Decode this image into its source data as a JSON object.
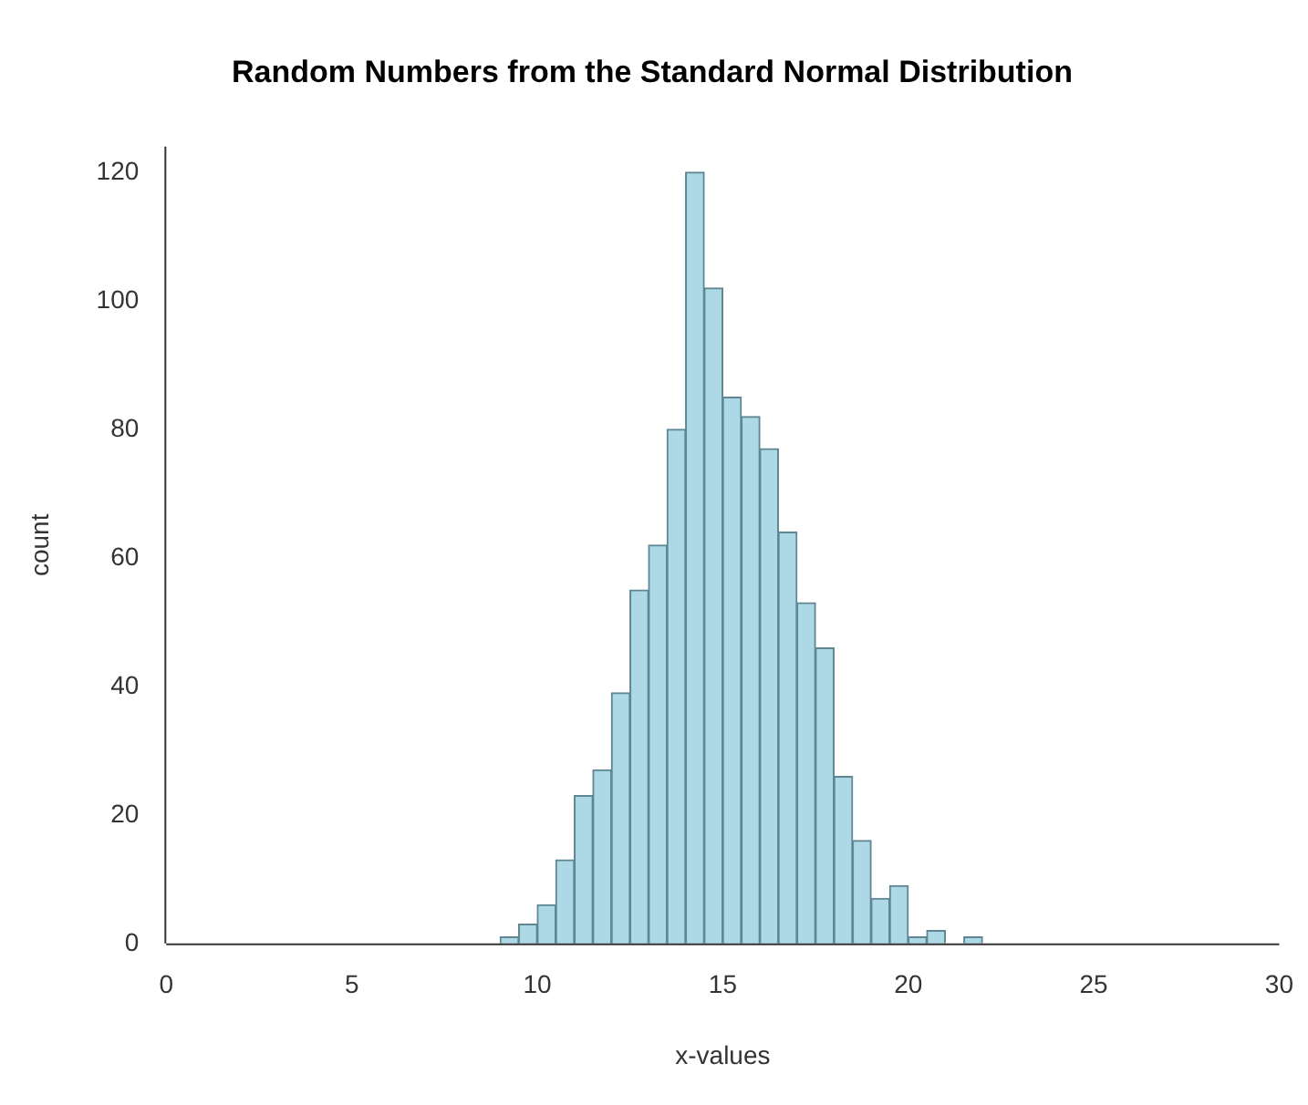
{
  "chart_data": {
    "type": "histogram",
    "title": "Random Numbers from the Standard Normal Distribution",
    "xlabel": "x-values",
    "ylabel": "count",
    "bins": [
      9,
      9.5,
      10,
      10.5,
      11,
      11.5,
      12,
      12.5,
      13,
      13.5,
      14,
      14.5,
      15,
      15.5,
      16,
      16.5,
      17,
      17.5,
      18,
      18.5,
      19,
      19.5,
      20,
      20.5,
      21,
      21.5,
      22
    ],
    "values": [
      1,
      3,
      6,
      13,
      23,
      27,
      39,
      55,
      62,
      80,
      120,
      102,
      85,
      82,
      77,
      64,
      53,
      46,
      26,
      16,
      7,
      9,
      1,
      2,
      0,
      1
    ],
    "color": "#add8e6",
    "xlim": [
      0,
      30
    ],
    "xticks": [
      0,
      5,
      10,
      15,
      20,
      25,
      30
    ],
    "ylim": [
      0,
      124
    ],
    "yticks": [
      0,
      20,
      40,
      60,
      80,
      100,
      120
    ],
    "grid": false,
    "legend": false
  }
}
